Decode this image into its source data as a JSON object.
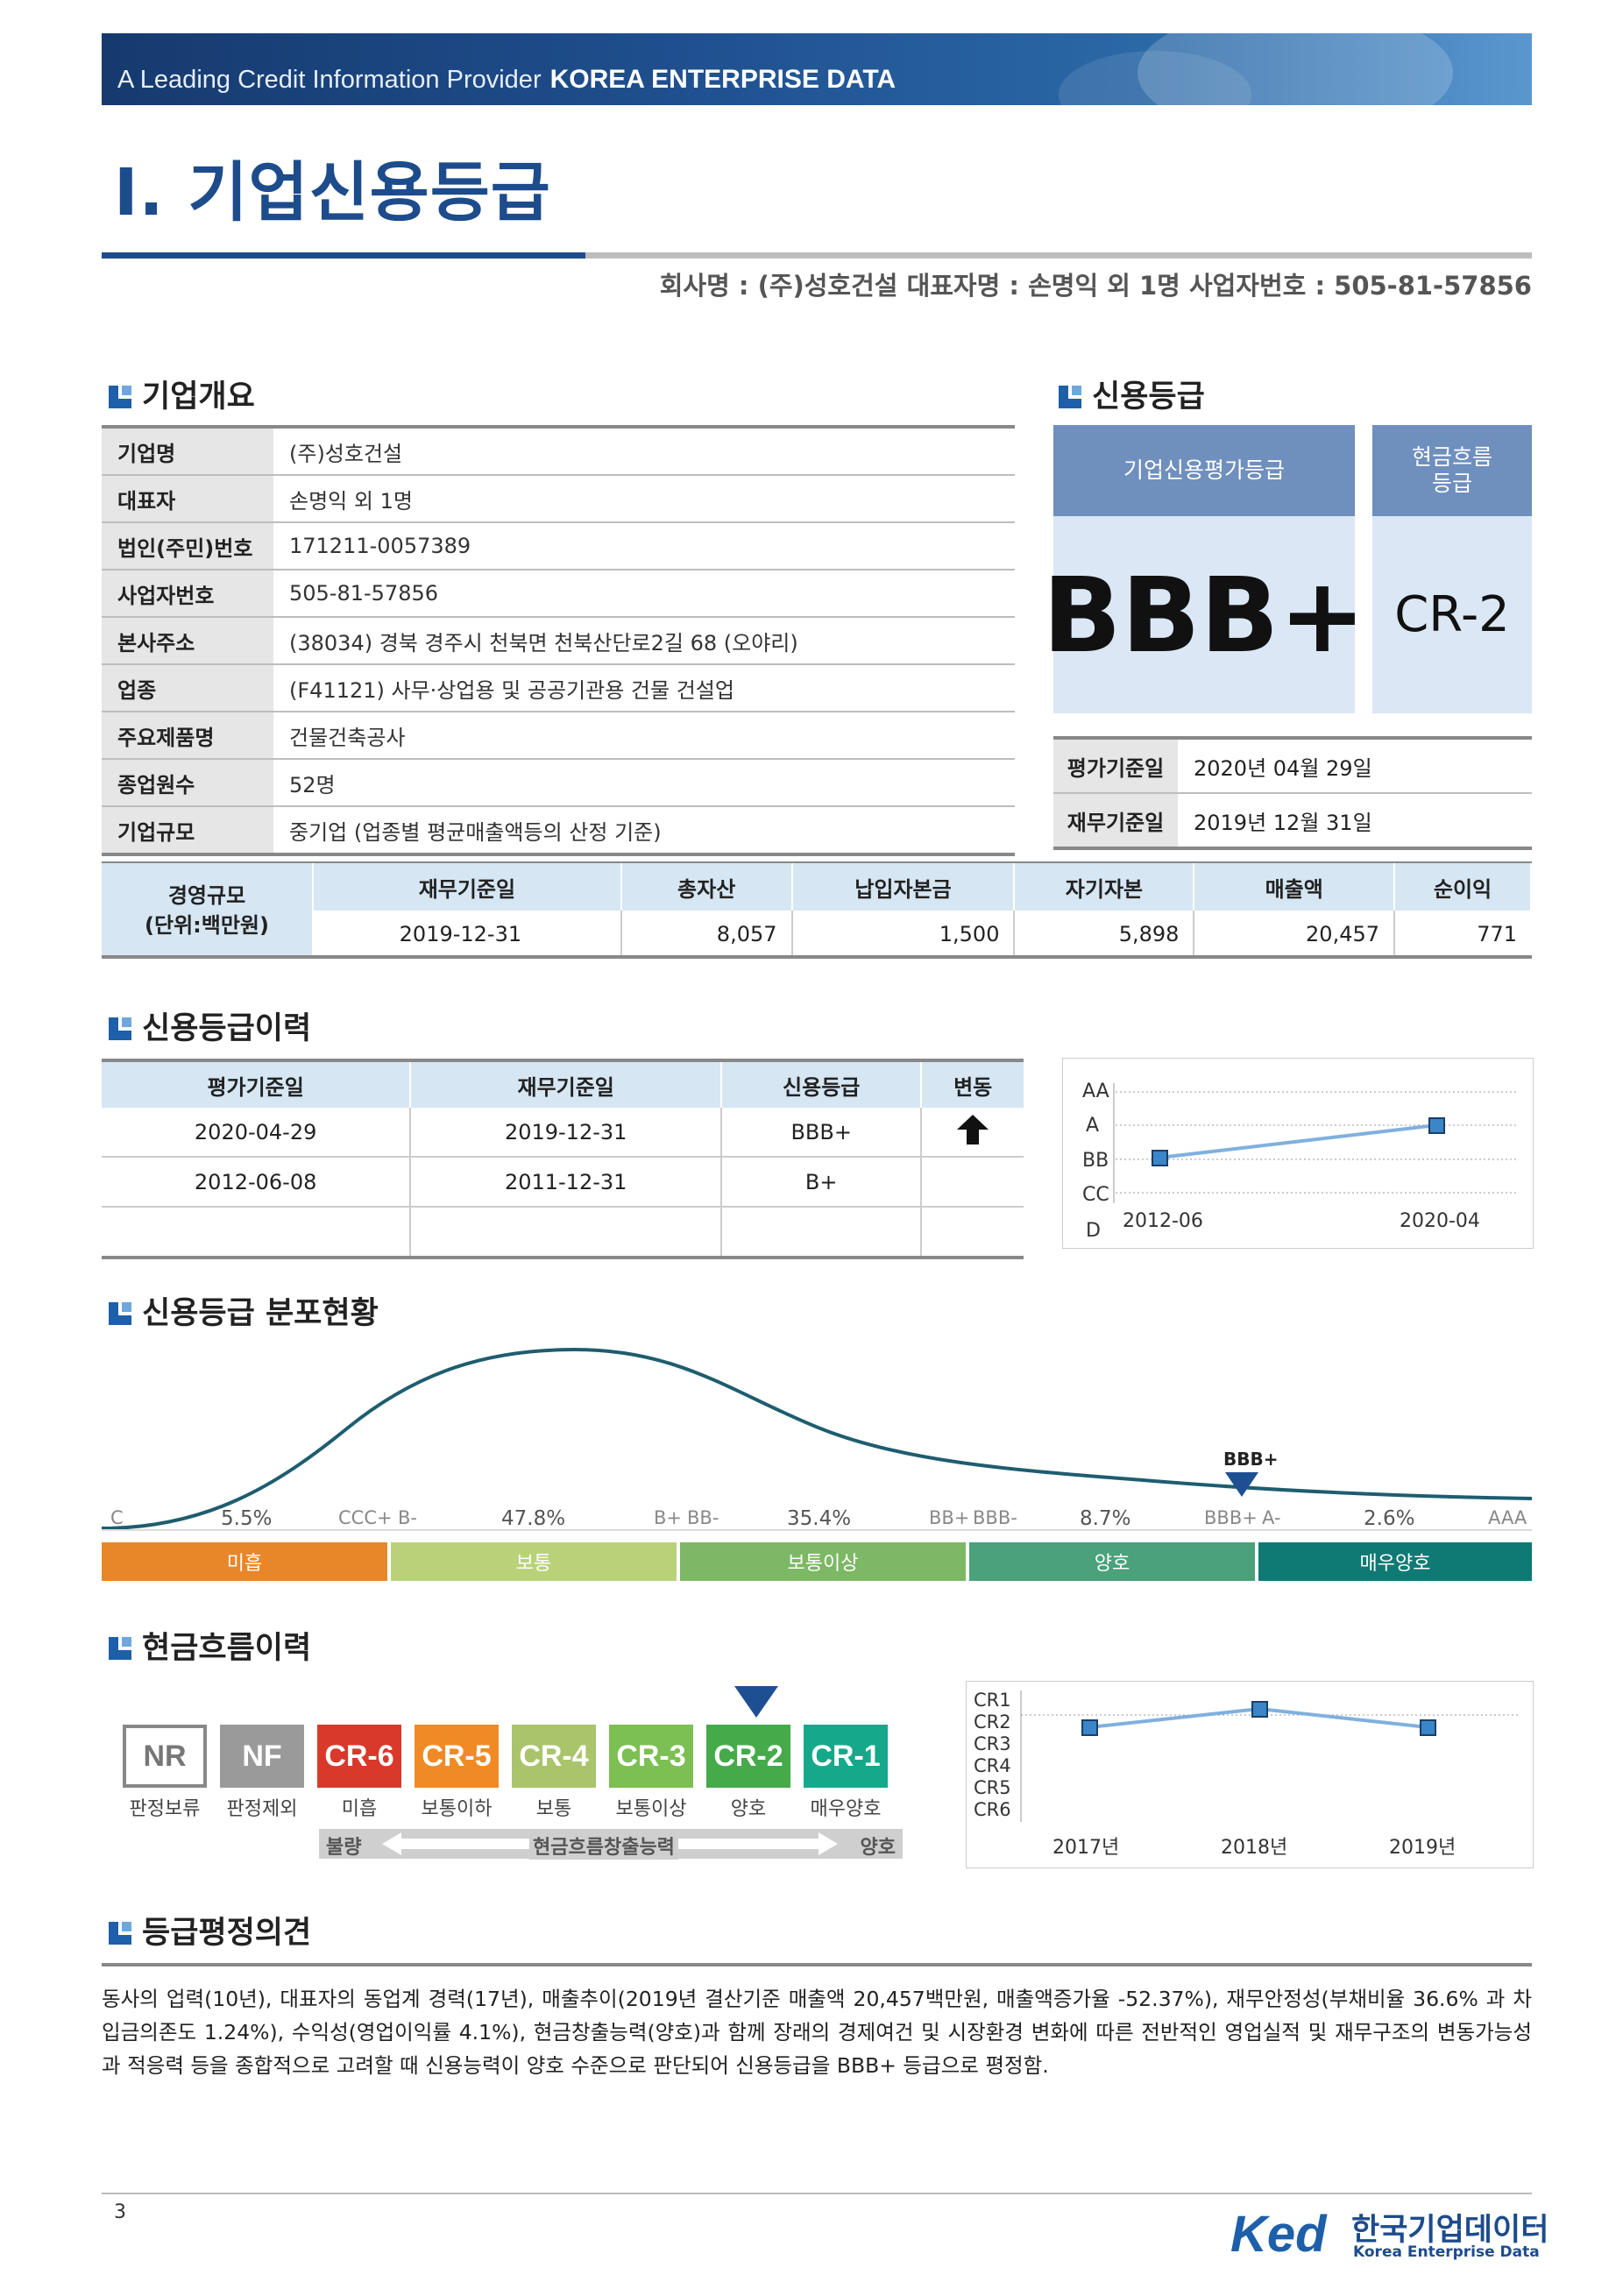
{
  "banner": {
    "tagline": "A Leading Credit Information Provider",
    "brand": "KOREA ENTERPRISE DATA"
  },
  "page_title": "Ⅰ. 기업신용등급",
  "company_line": "회사명 : (주)성호건설   대표자명 : 손명익 외 1명   사업자번호 : 505-81-57856",
  "overview": {
    "title": "기업개요",
    "rows": [
      {
        "k": "기업명",
        "v": "(주)성호건설"
      },
      {
        "k": "대표자",
        "v": "손명익 외 1명"
      },
      {
        "k": "법인(주민)번호",
        "v": "171211-0057389"
      },
      {
        "k": "사업자번호",
        "v": "505-81-57856"
      },
      {
        "k": "본사주소",
        "v": "(38034) 경북 경주시 천북면 천북산단로2길 68 (오야리)"
      },
      {
        "k": "업종",
        "v": "(F41121) 사무·상업용 및 공공기관용 건물 건설업"
      },
      {
        "k": "주요제품명",
        "v": "건물건축공사"
      },
      {
        "k": "종업원수",
        "v": "52명"
      },
      {
        "k": "기업규모",
        "v": "중기업 (업종별 평균매출액등의 산정 기준)"
      }
    ]
  },
  "rating": {
    "title": "신용등급",
    "credit_head": "기업신용평가등급",
    "credit_value": "BBB+",
    "cash_head_1": "현금흐름",
    "cash_head_2": "등급",
    "cash_value": "CR-2",
    "eval_label": "평가기준일",
    "eval_date": "2020년 04월 29일",
    "fin_label": "재무기준일",
    "fin_date": "2019년 12월 31일"
  },
  "scale": {
    "caption_1": "경영규모",
    "caption_2": "(단위:백만원)",
    "headers": [
      "재무기준일",
      "총자산",
      "납입자본금",
      "자기자본",
      "매출액",
      "순이익"
    ],
    "values": [
      "2019-12-31",
      "8,057",
      "1,500",
      "5,898",
      "20,457",
      "771"
    ]
  },
  "history": {
    "title": "신용등급이력",
    "headers": [
      "평가기준일",
      "재무기준일",
      "신용등급",
      "변동"
    ],
    "rows": [
      {
        "eval": "2020-04-29",
        "fin": "2019-12-31",
        "grade": "BBB+",
        "change": "up"
      },
      {
        "eval": "2012-06-08",
        "fin": "2011-12-31",
        "grade": "B+",
        "change": ""
      }
    ],
    "chart": {
      "y_labels": [
        "AA",
        "A",
        "BB",
        "CC",
        "D"
      ],
      "x_labels": [
        "2012-06",
        "2020-04"
      ],
      "line_color": "#7fb0df"
    }
  },
  "distribution": {
    "title": "신용등급 분포현황",
    "marker": "BBB+",
    "ticks": [
      "C",
      "CCC+",
      "B-",
      "B+",
      "BB-",
      "BB+",
      "BBB-",
      "BBB+",
      "A-",
      "AAA"
    ],
    "percents": [
      "5.5%",
      "47.8%",
      "35.4%",
      "8.7%",
      "2.6%"
    ],
    "bands": [
      {
        "label": "미흡",
        "color": "#e8862a"
      },
      {
        "label": "보통",
        "color": "#b9d27a"
      },
      {
        "label": "보통이상",
        "color": "#7db865"
      },
      {
        "label": "양호",
        "color": "#4aa17a"
      },
      {
        "label": "매우양호",
        "color": "#0f7a74"
      }
    ],
    "curve_color": "#1e5d6f"
  },
  "cashflow": {
    "title": "현금흐름이력",
    "boxes": [
      {
        "code": "NR",
        "label": "판정보류",
        "color": "#ffffff",
        "text": "#777777",
        "border": "#888888"
      },
      {
        "code": "NF",
        "label": "판정제외",
        "color": "#9a9a9a",
        "text": "#ffffff",
        "border": "#9a9a9a"
      },
      {
        "code": "CR-6",
        "label": "미흡",
        "color": "#d9392b",
        "text": "#ffffff",
        "border": "#d9392b"
      },
      {
        "code": "CR-5",
        "label": "보통이하",
        "color": "#f08a24",
        "text": "#ffffff",
        "border": "#f08a24"
      },
      {
        "code": "CR-4",
        "label": "보통",
        "color": "#a9c46b",
        "text": "#ffffff",
        "border": "#a9c46b"
      },
      {
        "code": "CR-3",
        "label": "보통이상",
        "color": "#7cbf52",
        "text": "#ffffff",
        "border": "#7cbf52"
      },
      {
        "code": "CR-2",
        "label": "양호",
        "color": "#45aa4a",
        "text": "#ffffff",
        "border": "#45aa4a"
      },
      {
        "code": "CR-1",
        "label": "매우양호",
        "color": "#16a88a",
        "text": "#ffffff",
        "border": "#16a88a"
      }
    ],
    "bar_left": "불량",
    "bar_mid": "현금흐름창출능력",
    "bar_right": "양호",
    "chart": {
      "y_labels": [
        "CR1",
        "CR2",
        "CR3",
        "CR4",
        "CR5",
        "CR6"
      ],
      "x_labels": [
        "2017년",
        "2018년",
        "2019년"
      ],
      "line_color": "#7fb0df"
    }
  },
  "opinion": {
    "title": "등급평정의견",
    "text": "동사의 업력(10년), 대표자의 동업계 경력(17년), 매출추이(2019년 결산기준 매출액 20,457백만원, 매출액증가율 -52.37%), 재무안정성(부채비율 36.6% 과 차입금의존도 1.24%), 수익성(영업이익률 4.1%), 현금창출능력(양호)과 함께 장래의 경제여건 및 시장환경 변화에 따른 전반적인 영업실적 및 재무구조의 변동가능성과 적응력 등을 종합적으로 고려할 때 신용능력이 양호 수준으로 판단되어 신용등급을 BBB+ 등급으로 평정함."
  },
  "footer": {
    "page_number": "3",
    "logo_mark": "Ked",
    "logo_kr": "한국기업데이터",
    "logo_en": "Korea Enterprise Data"
  }
}
